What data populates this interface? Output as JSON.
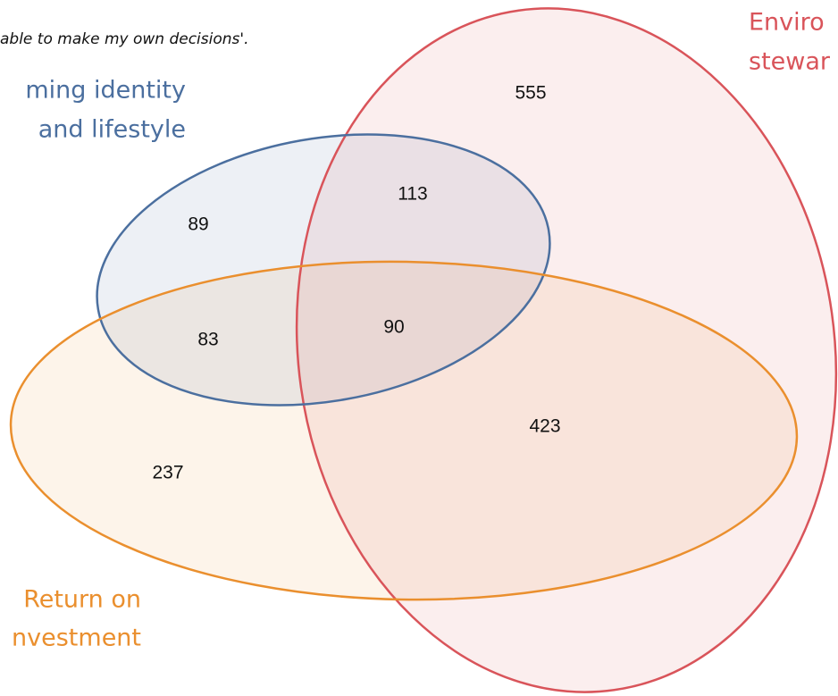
{
  "caption": "able to make my own decisions'.",
  "sets": [
    {
      "lines": [
        "Enviro",
        "stewar"
      ],
      "color": "#d9545a"
    },
    {
      "lines": [
        "ming identity",
        "and lifestyle"
      ],
      "color": "#4b6f9f"
    },
    {
      "lines": [
        "Return on",
        "nvestment"
      ],
      "color": "#ea8f2e"
    }
  ],
  "regions": [
    555,
    113,
    89,
    90,
    83,
    423,
    237
  ]
}
